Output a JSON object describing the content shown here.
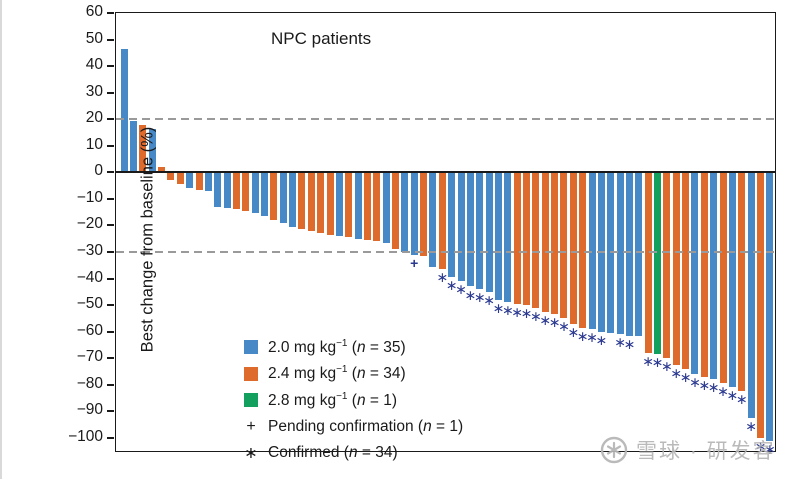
{
  "title": "NPC patients",
  "y_axis": {
    "label": "Best change from baseline (%)",
    "ticks": [
      60,
      50,
      40,
      30,
      20,
      10,
      0,
      -10,
      -20,
      -30,
      -40,
      -50,
      -60,
      -70,
      -80,
      -90,
      -100
    ]
  },
  "legend": {
    "items": [
      {
        "symbol": "square",
        "color": "#4689C6",
        "pre": "2.0 mg kg",
        "sup": "−1",
        "n_open": " (",
        "n": "n",
        "n_close": " = 35)"
      },
      {
        "symbol": "square",
        "color": "#DE6A2C",
        "pre": "2.4 mg kg",
        "sup": "−1",
        "n_open": " (",
        "n": "n",
        "n_close": " = 34)"
      },
      {
        "symbol": "square",
        "color": "#13A05F",
        "pre": "2.8 mg kg",
        "sup": "−1",
        "n_open": " (",
        "n": "n",
        "n_close": " = 1)"
      },
      {
        "symbol": "glyph",
        "glyph": "+",
        "pre": "Pending confirmation",
        "sup": "",
        "n_open": " (",
        "n": "n",
        "n_close": " = 1)"
      },
      {
        "symbol": "glyph",
        "glyph": "∗",
        "pre": "Confirmed",
        "sup": "",
        "n_open": " (",
        "n": "n",
        "n_close": " = 34)"
      }
    ]
  },
  "watermark": {
    "text": "雪球 · 研发客"
  },
  "colors": {
    "dose_2_0": "#4689C6",
    "dose_2_4": "#DE6A2C",
    "dose_2_8": "#13A05F",
    "marker": "#2b3990",
    "reference_line": "#9a9a9a",
    "axis": "#1a1a1a"
  },
  "chart_data": {
    "type": "bar",
    "title": "NPC patients",
    "xlabel": "",
    "ylabel": "Best change from baseline (%)",
    "ylim": [
      -105.7,
      60
    ],
    "grid": false,
    "legend_position": "lower-left",
    "reference_lines_y": [
      20,
      -30
    ],
    "marker_glyphs": {
      "pending": "+",
      "confirmed": "∗"
    },
    "series_doses": [
      "2.0 mg/kg",
      "2.4 mg/kg",
      "2.8 mg/kg"
    ],
    "values": [
      46.5,
      19.5,
      18,
      16.5,
      2,
      -3,
      -4.5,
      -6,
      -6.5,
      -7,
      -13,
      -13.5,
      -14,
      -14.5,
      -15.5,
      -16.5,
      -18,
      -19,
      -20.5,
      -21.5,
      -22,
      -23,
      -23.5,
      -24,
      -24.5,
      -25,
      -25.5,
      -26,
      -26.5,
      -29,
      -30,
      -31,
      -31.5,
      -35.5,
      -36.5,
      -39.5,
      -41,
      -43,
      -44,
      -45,
      -48,
      -49,
      -49.5,
      -50,
      -51,
      -52.5,
      -53.5,
      -55,
      -57,
      -58.5,
      -59,
      -60,
      -60.5,
      -61,
      -61.5,
      -61.5,
      -68,
      -68.5,
      -70,
      -72.5,
      -74,
      -76,
      -77,
      -78,
      -79.5,
      -81,
      -82.5,
      -92.5,
      -100,
      -101
    ],
    "dose_group": [
      "2.0",
      "2.0",
      "2.4",
      "2.0",
      "2.4",
      "2.4",
      "2.4",
      "2.0",
      "2.4",
      "2.0",
      "2.0",
      "2.0",
      "2.4",
      "2.4",
      "2.0",
      "2.0",
      "2.4",
      "2.0",
      "2.0",
      "2.4",
      "2.4",
      "2.4",
      "2.4",
      "2.0",
      "2.4",
      "2.0",
      "2.4",
      "2.4",
      "2.0",
      "2.4",
      "2.0",
      "2.0",
      "2.4",
      "2.0",
      "2.4",
      "2.0",
      "2.0",
      "2.0",
      "2.0",
      "2.0",
      "2.0",
      "2.0",
      "2.4",
      "2.4",
      "2.4",
      "2.4",
      "2.4",
      "2.4",
      "2.4",
      "2.4",
      "2.0",
      "2.0",
      "2.0",
      "2.0",
      "2.0",
      "2.0",
      "2.4",
      "2.8",
      "2.4",
      "2.4",
      "2.4",
      "2.0",
      "2.4",
      "2.0",
      "2.4",
      "2.0",
      "2.4",
      "2.0",
      "2.4",
      "2.0"
    ],
    "markers": [
      null,
      null,
      null,
      null,
      null,
      null,
      null,
      null,
      null,
      null,
      null,
      null,
      null,
      null,
      null,
      null,
      null,
      null,
      null,
      null,
      null,
      null,
      null,
      null,
      null,
      null,
      null,
      null,
      null,
      null,
      null,
      "pending",
      null,
      null,
      "confirmed",
      "confirmed",
      "confirmed",
      "confirmed",
      "confirmed",
      "confirmed",
      "confirmed",
      "confirmed",
      "confirmed",
      "confirmed",
      "confirmed",
      "confirmed",
      "confirmed",
      "confirmed",
      "confirmed",
      "confirmed",
      "confirmed",
      "confirmed",
      null,
      "confirmed",
      "confirmed",
      null,
      "confirmed",
      "confirmed",
      "confirmed",
      "confirmed",
      "confirmed",
      "confirmed",
      "confirmed",
      "confirmed",
      "confirmed",
      "confirmed",
      "confirmed",
      "confirmed",
      "confirmed",
      "confirmed"
    ]
  }
}
